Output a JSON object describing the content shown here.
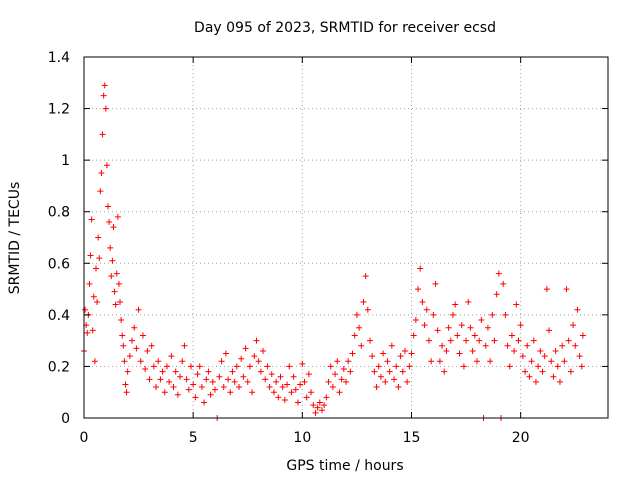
{
  "chart_data": {
    "type": "scatter",
    "title": "Day 095 of 2023, SRMTID for receiver ecsd",
    "xlabel": "GPS time / hours",
    "ylabel": "SRMTID / TECUs",
    "xlim": [
      0,
      24
    ],
    "ylim": [
      0,
      1.4
    ],
    "xticks": [
      0,
      5,
      10,
      15,
      20
    ],
    "xtick_labels": [
      "0",
      "5",
      "10",
      "15",
      "20"
    ],
    "yticks": [
      0,
      0.2,
      0.4,
      0.6,
      0.8,
      1.0,
      1.2,
      1.4
    ],
    "ytick_labels": [
      "0",
      "0.2",
      "0.4",
      "0.6",
      "0.8",
      "1",
      "1.2",
      "1.4"
    ],
    "grid": true,
    "marker": "+",
    "color": "#ff0000",
    "series": [
      {
        "name": "SRMTID",
        "points": [
          [
            0.0,
            0.26
          ],
          [
            0.05,
            0.42
          ],
          [
            0.1,
            0.36
          ],
          [
            0.15,
            0.33
          ],
          [
            0.2,
            0.4
          ],
          [
            0.25,
            0.52
          ],
          [
            0.3,
            0.63
          ],
          [
            0.35,
            0.77
          ],
          [
            0.4,
            0.34
          ],
          [
            0.45,
            0.47
          ],
          [
            0.5,
            0.22
          ],
          [
            0.55,
            0.58
          ],
          [
            0.6,
            0.45
          ],
          [
            0.65,
            0.7
          ],
          [
            0.7,
            0.62
          ],
          [
            0.75,
            0.88
          ],
          [
            0.8,
            0.95
          ],
          [
            0.85,
            1.1
          ],
          [
            0.9,
            1.25
          ],
          [
            0.95,
            1.29
          ],
          [
            1.0,
            1.2
          ],
          [
            1.05,
            0.98
          ],
          [
            1.1,
            0.82
          ],
          [
            1.15,
            0.76
          ],
          [
            1.2,
            0.66
          ],
          [
            1.25,
            0.55
          ],
          [
            1.3,
            0.61
          ],
          [
            1.35,
            0.74
          ],
          [
            1.4,
            0.49
          ],
          [
            1.45,
            0.44
          ],
          [
            1.5,
            0.56
          ],
          [
            1.55,
            0.78
          ],
          [
            1.6,
            0.52
          ],
          [
            1.65,
            0.45
          ],
          [
            1.7,
            0.38
          ],
          [
            1.75,
            0.32
          ],
          [
            1.8,
            0.28
          ],
          [
            1.85,
            0.22
          ],
          [
            1.9,
            0.13
          ],
          [
            1.95,
            0.1
          ],
          [
            2.0,
            0.18
          ],
          [
            2.1,
            0.24
          ],
          [
            2.2,
            0.3
          ],
          [
            2.3,
            0.35
          ],
          [
            2.4,
            0.27
          ],
          [
            2.5,
            0.42
          ],
          [
            2.6,
            0.22
          ],
          [
            2.7,
            0.32
          ],
          [
            2.8,
            0.19
          ],
          [
            2.9,
            0.26
          ],
          [
            3.0,
            0.15
          ],
          [
            3.1,
            0.28
          ],
          [
            3.2,
            0.2
          ],
          [
            3.3,
            0.12
          ],
          [
            3.4,
            0.22
          ],
          [
            3.5,
            0.15
          ],
          [
            3.6,
            0.18
          ],
          [
            3.7,
            0.1
          ],
          [
            3.8,
            0.2
          ],
          [
            3.9,
            0.14
          ],
          [
            4.0,
            0.24
          ],
          [
            4.1,
            0.12
          ],
          [
            4.2,
            0.18
          ],
          [
            4.3,
            0.09
          ],
          [
            4.4,
            0.16
          ],
          [
            4.5,
            0.22
          ],
          [
            4.6,
            0.28
          ],
          [
            4.7,
            0.15
          ],
          [
            4.8,
            0.11
          ],
          [
            4.9,
            0.2
          ],
          [
            5.0,
            0.13
          ],
          [
            5.1,
            0.08
          ],
          [
            5.2,
            0.17
          ],
          [
            5.3,
            0.2
          ],
          [
            5.4,
            0.12
          ],
          [
            5.5,
            0.06
          ],
          [
            5.6,
            0.15
          ],
          [
            5.7,
            0.18
          ],
          [
            5.8,
            0.09
          ],
          [
            5.9,
            0.14
          ],
          [
            6.0,
            0.11
          ],
          [
            6.1,
            0.0
          ],
          [
            6.2,
            0.16
          ],
          [
            6.3,
            0.22
          ],
          [
            6.4,
            0.12
          ],
          [
            6.5,
            0.25
          ],
          [
            6.6,
            0.15
          ],
          [
            6.7,
            0.1
          ],
          [
            6.8,
            0.18
          ],
          [
            6.9,
            0.14
          ],
          [
            7.0,
            0.2
          ],
          [
            7.1,
            0.12
          ],
          [
            7.2,
            0.23
          ],
          [
            7.3,
            0.16
          ],
          [
            7.4,
            0.27
          ],
          [
            7.5,
            0.14
          ],
          [
            7.6,
            0.2
          ],
          [
            7.7,
            0.1
          ],
          [
            7.8,
            0.24
          ],
          [
            7.9,
            0.3
          ],
          [
            8.0,
            0.22
          ],
          [
            8.1,
            0.18
          ],
          [
            8.2,
            0.26
          ],
          [
            8.3,
            0.15
          ],
          [
            8.4,
            0.2
          ],
          [
            8.5,
            0.12
          ],
          [
            8.6,
            0.17
          ],
          [
            8.7,
            0.1
          ],
          [
            8.8,
            0.14
          ],
          [
            8.9,
            0.08
          ],
          [
            9.0,
            0.16
          ],
          [
            9.1,
            0.12
          ],
          [
            9.2,
            0.07
          ],
          [
            9.3,
            0.13
          ],
          [
            9.4,
            0.2
          ],
          [
            9.5,
            0.1
          ],
          [
            9.6,
            0.16
          ],
          [
            9.7,
            0.11
          ],
          [
            9.8,
            0.06
          ],
          [
            9.9,
            0.13
          ],
          [
            10.0,
            0.21
          ],
          [
            10.1,
            0.14
          ],
          [
            10.2,
            0.08
          ],
          [
            10.3,
            0.17
          ],
          [
            10.4,
            0.1
          ],
          [
            10.5,
            0.05
          ],
          [
            10.6,
            0.02
          ],
          [
            10.7,
            0.04
          ],
          [
            10.8,
            0.06
          ],
          [
            10.9,
            0.03
          ],
          [
            11.0,
            0.05
          ],
          [
            11.1,
            0.08
          ],
          [
            11.2,
            0.14
          ],
          [
            11.3,
            0.2
          ],
          [
            11.4,
            0.12
          ],
          [
            11.5,
            0.17
          ],
          [
            11.6,
            0.22
          ],
          [
            11.7,
            0.1
          ],
          [
            11.8,
            0.15
          ],
          [
            11.9,
            0.19
          ],
          [
            12.0,
            0.14
          ],
          [
            12.1,
            0.22
          ],
          [
            12.2,
            0.18
          ],
          [
            12.3,
            0.25
          ],
          [
            12.4,
            0.32
          ],
          [
            12.5,
            0.4
          ],
          [
            12.6,
            0.35
          ],
          [
            12.7,
            0.28
          ],
          [
            12.8,
            0.45
          ],
          [
            12.9,
            0.55
          ],
          [
            13.0,
            0.42
          ],
          [
            13.1,
            0.3
          ],
          [
            13.2,
            0.24
          ],
          [
            13.3,
            0.18
          ],
          [
            13.4,
            0.12
          ],
          [
            13.5,
            0.2
          ],
          [
            13.6,
            0.16
          ],
          [
            13.7,
            0.25
          ],
          [
            13.8,
            0.14
          ],
          [
            13.9,
            0.22
          ],
          [
            14.0,
            0.18
          ],
          [
            14.1,
            0.28
          ],
          [
            14.2,
            0.15
          ],
          [
            14.3,
            0.2
          ],
          [
            14.4,
            0.12
          ],
          [
            14.5,
            0.24
          ],
          [
            14.6,
            0.18
          ],
          [
            14.7,
            0.26
          ],
          [
            14.8,
            0.14
          ],
          [
            14.9,
            0.2
          ],
          [
            15.0,
            0.25
          ],
          [
            15.1,
            0.32
          ],
          [
            15.2,
            0.38
          ],
          [
            15.3,
            0.5
          ],
          [
            15.4,
            0.58
          ],
          [
            15.5,
            0.45
          ],
          [
            15.6,
            0.36
          ],
          [
            15.7,
            0.42
          ],
          [
            15.8,
            0.3
          ],
          [
            15.9,
            0.22
          ],
          [
            16.0,
            0.4
          ],
          [
            16.1,
            0.52
          ],
          [
            16.2,
            0.34
          ],
          [
            16.3,
            0.22
          ],
          [
            16.4,
            0.28
          ],
          [
            16.5,
            0.18
          ],
          [
            16.6,
            0.26
          ],
          [
            16.7,
            0.35
          ],
          [
            16.8,
            0.3
          ],
          [
            16.9,
            0.4
          ],
          [
            17.0,
            0.44
          ],
          [
            17.1,
            0.32
          ],
          [
            17.2,
            0.25
          ],
          [
            17.3,
            0.36
          ],
          [
            17.4,
            0.2
          ],
          [
            17.5,
            0.3
          ],
          [
            17.6,
            0.45
          ],
          [
            17.7,
            0.35
          ],
          [
            17.8,
            0.26
          ],
          [
            17.9,
            0.32
          ],
          [
            18.0,
            0.22
          ],
          [
            18.1,
            0.3
          ],
          [
            18.2,
            0.38
          ],
          [
            18.3,
            0.0
          ],
          [
            18.4,
            0.28
          ],
          [
            18.5,
            0.35
          ],
          [
            18.6,
            0.22
          ],
          [
            18.7,
            0.4
          ],
          [
            18.8,
            0.3
          ],
          [
            18.9,
            0.48
          ],
          [
            19.0,
            0.56
          ],
          [
            19.1,
            0.0
          ],
          [
            19.2,
            0.52
          ],
          [
            19.3,
            0.4
          ],
          [
            19.4,
            0.28
          ],
          [
            19.5,
            0.2
          ],
          [
            19.6,
            0.32
          ],
          [
            19.7,
            0.26
          ],
          [
            19.8,
            0.44
          ],
          [
            19.9,
            0.3
          ],
          [
            20.0,
            0.36
          ],
          [
            20.1,
            0.24
          ],
          [
            20.2,
            0.18
          ],
          [
            20.3,
            0.28
          ],
          [
            20.4,
            0.16
          ],
          [
            20.5,
            0.22
          ],
          [
            20.6,
            0.3
          ],
          [
            20.7,
            0.14
          ],
          [
            20.8,
            0.2
          ],
          [
            20.9,
            0.26
          ],
          [
            21.0,
            0.18
          ],
          [
            21.1,
            0.24
          ],
          [
            21.2,
            0.5
          ],
          [
            21.3,
            0.34
          ],
          [
            21.4,
            0.22
          ],
          [
            21.5,
            0.16
          ],
          [
            21.6,
            0.26
          ],
          [
            21.7,
            0.2
          ],
          [
            21.8,
            0.14
          ],
          [
            21.9,
            0.28
          ],
          [
            22.0,
            0.22
          ],
          [
            22.1,
            0.5
          ],
          [
            22.2,
            0.3
          ],
          [
            22.3,
            0.18
          ],
          [
            22.4,
            0.36
          ],
          [
            22.5,
            0.28
          ],
          [
            22.6,
            0.42
          ],
          [
            22.7,
            0.24
          ],
          [
            22.8,
            0.2
          ],
          [
            22.85,
            0.32
          ]
        ]
      }
    ]
  }
}
